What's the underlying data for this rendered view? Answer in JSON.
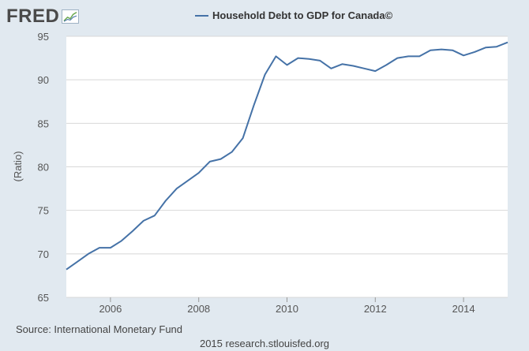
{
  "logo": {
    "text": "FRED",
    "mark_icon": "chart-line-icon"
  },
  "colors": {
    "background": "#e1e9f0",
    "plot_background": "#ffffff",
    "grid": "#d8d8d8",
    "series": "#4572a7"
  },
  "footer": {
    "source": "Source: International Monetary Fund",
    "credit": "2015 research.stlouisfed.org"
  },
  "chart_data": {
    "type": "line",
    "title": "",
    "legend": {
      "placement": "top-center",
      "entries": [
        "Household Debt to GDP for Canada©"
      ]
    },
    "xlabel": "",
    "ylabel": "(Ratio)",
    "xlim": [
      2005.0,
      2015.0
    ],
    "ylim": [
      65,
      95
    ],
    "x_ticks": [
      2006,
      2008,
      2010,
      2012,
      2014
    ],
    "y_ticks": [
      65,
      70,
      75,
      80,
      85,
      90,
      95
    ],
    "grid": "horizontal",
    "series": [
      {
        "name": "Household Debt to GDP for Canada©",
        "x": [
          2005.0,
          2005.25,
          2005.5,
          2005.75,
          2006.0,
          2006.25,
          2006.5,
          2006.75,
          2007.0,
          2007.25,
          2007.5,
          2007.75,
          2008.0,
          2008.25,
          2008.5,
          2008.75,
          2009.0,
          2009.25,
          2009.5,
          2009.75,
          2010.0,
          2010.25,
          2010.5,
          2010.75,
          2011.0,
          2011.25,
          2011.5,
          2011.75,
          2012.0,
          2012.25,
          2012.5,
          2012.75,
          2013.0,
          2013.25,
          2013.5,
          2013.75,
          2014.0,
          2014.25,
          2014.5,
          2014.75,
          2015.0
        ],
        "values": [
          68.2,
          69.1,
          70.0,
          70.7,
          70.7,
          71.5,
          72.6,
          73.8,
          74.4,
          76.1,
          77.5,
          78.4,
          79.3,
          80.6,
          80.9,
          81.7,
          83.3,
          87.1,
          90.6,
          92.7,
          91.7,
          92.5,
          92.4,
          92.2,
          91.3,
          91.8,
          91.6,
          91.3,
          91.0,
          91.7,
          92.5,
          92.7,
          92.7,
          93.4,
          93.5,
          93.4,
          92.8,
          93.2,
          93.7,
          93.8,
          94.3
        ]
      }
    ]
  }
}
